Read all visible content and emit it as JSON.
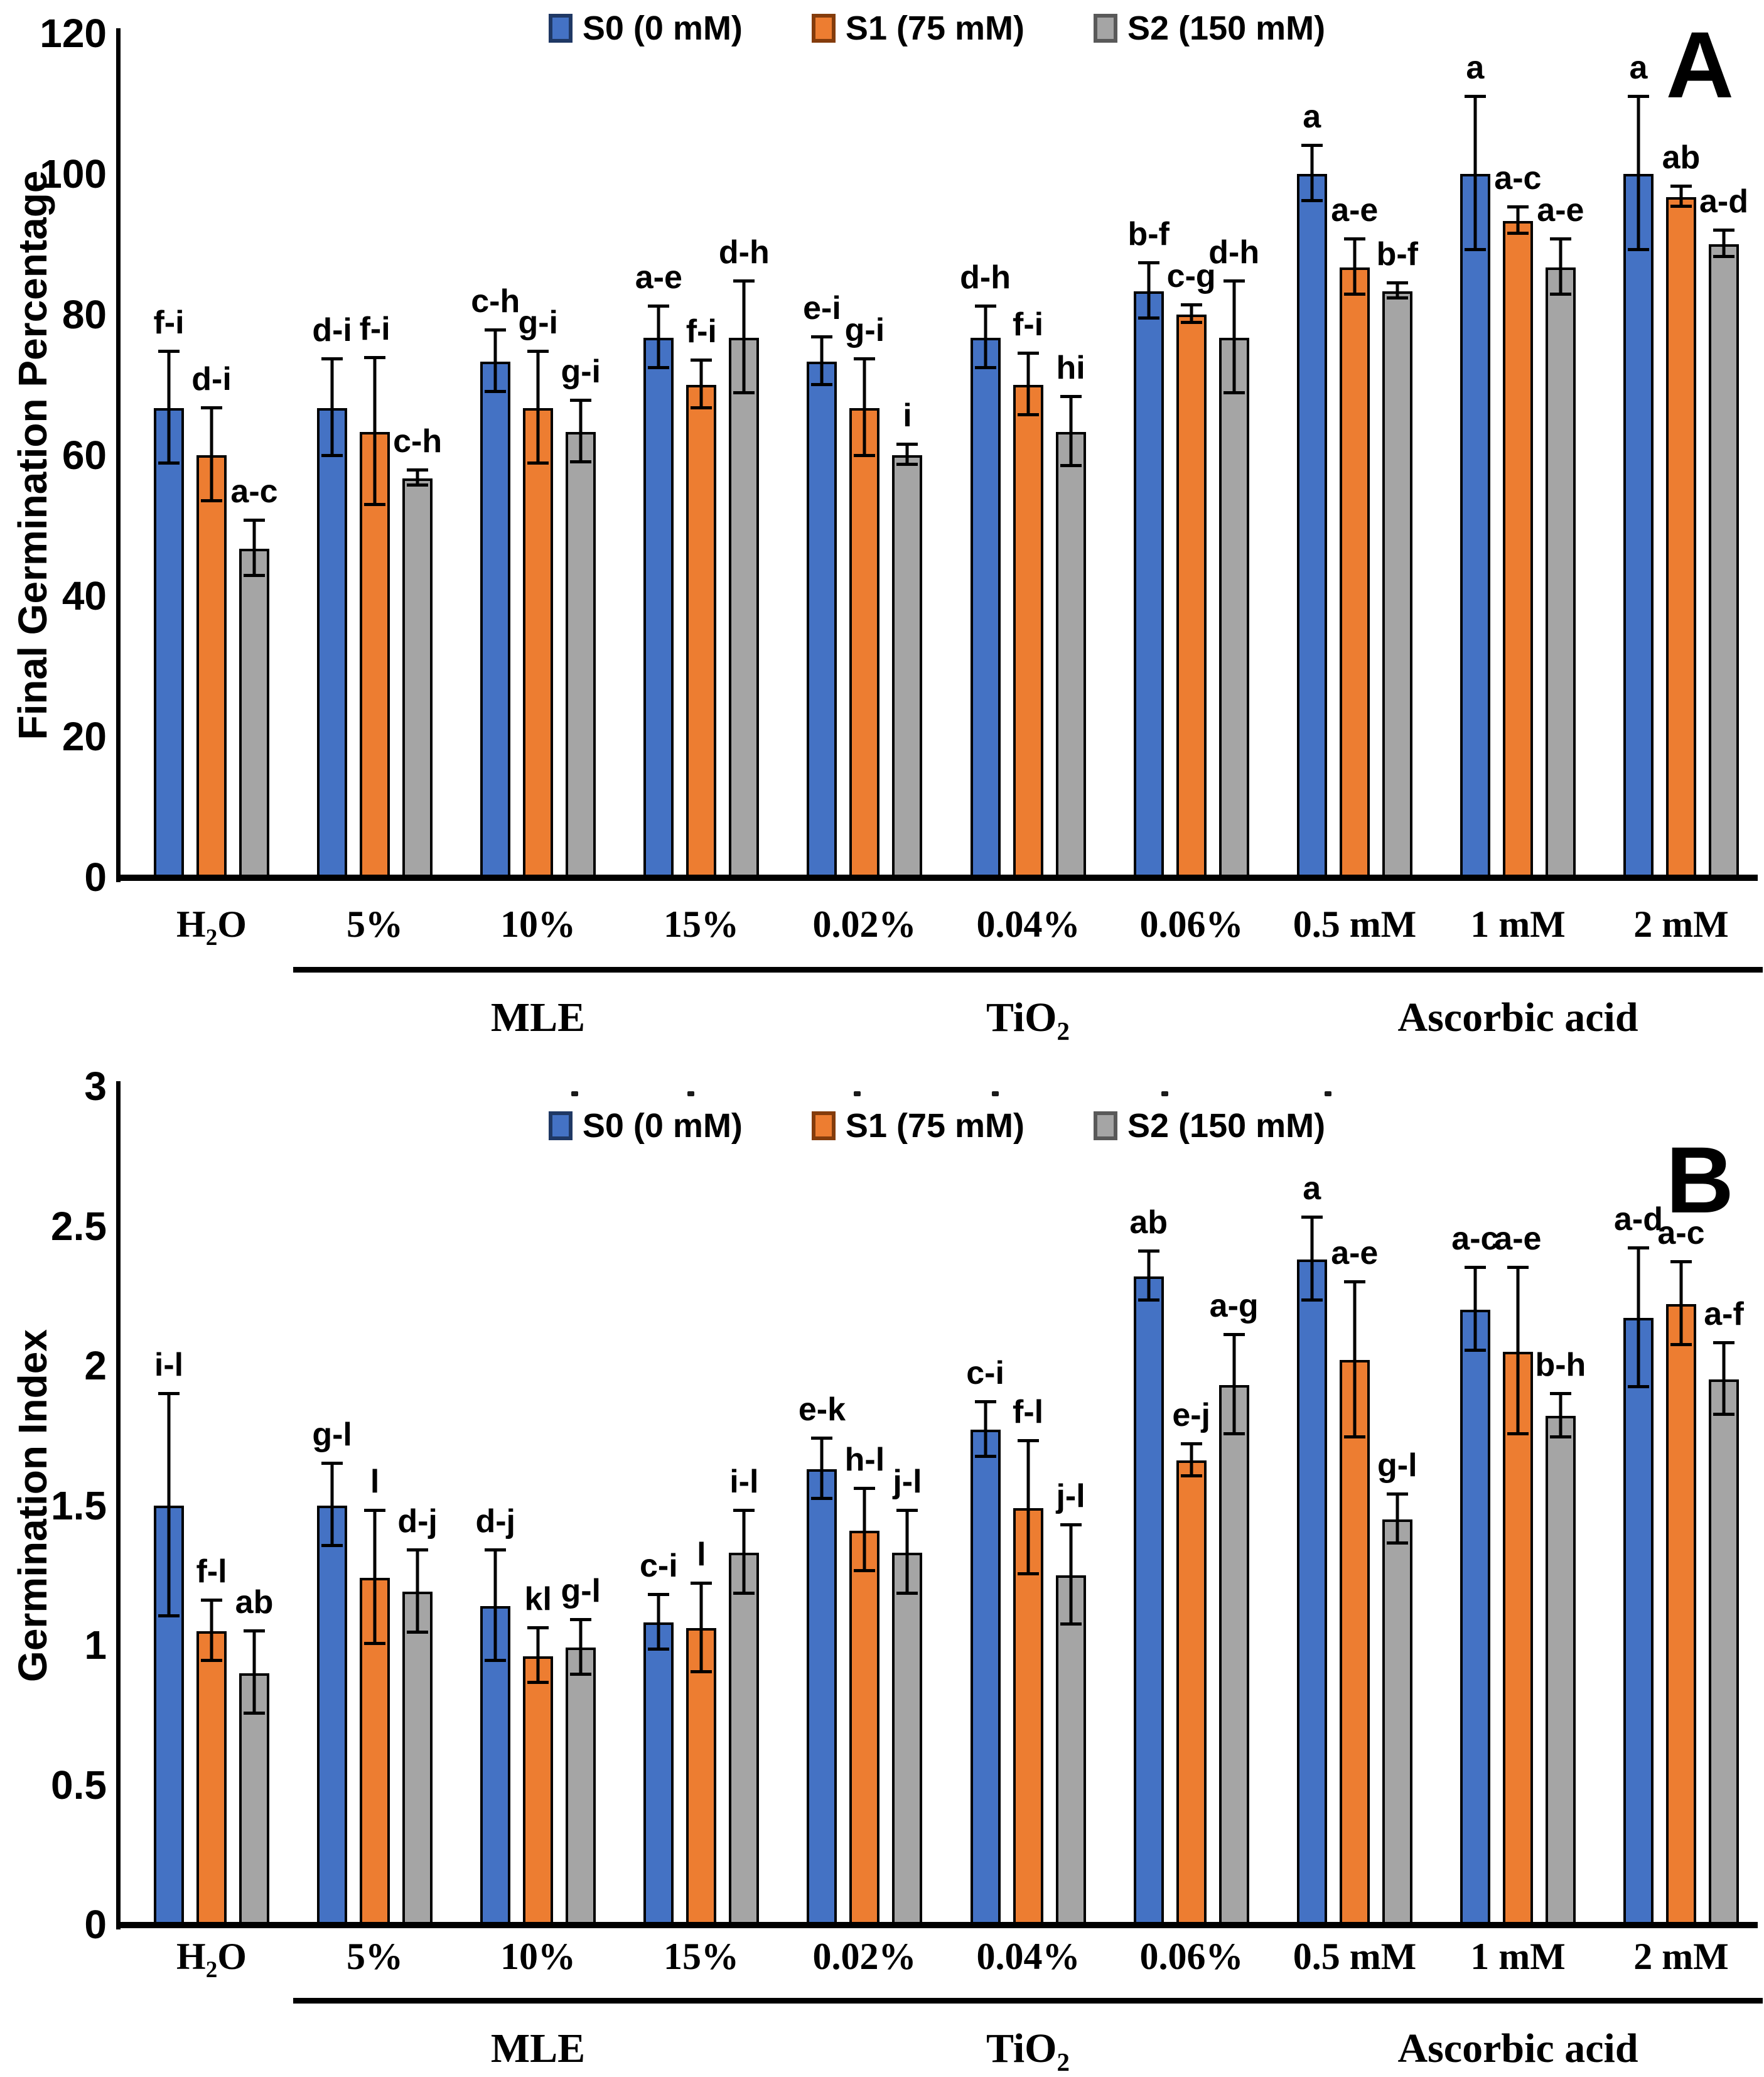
{
  "chart_data": [
    {
      "type": "bar",
      "panel_letter": "A",
      "ylabel": "Final Germination Percentage",
      "ylim": [
        0,
        120
      ],
      "yticks": [
        "0",
        "20",
        "40",
        "60",
        "80",
        "100",
        "120"
      ],
      "grid": false,
      "legend_position": "top-center",
      "categories": [
        "H₂O",
        "5%",
        "10%",
        "15%",
        "0.02%",
        "0.04%",
        "0.06%",
        "0.5 mM",
        "1 mM",
        "2 mM"
      ],
      "group_spans": [
        {
          "label": "MLE",
          "from": 1,
          "to": 3
        },
        {
          "label": "TiO₂",
          "from": 4,
          "to": 6
        },
        {
          "label": "Ascorbic acid",
          "from": 7,
          "to": 9
        }
      ],
      "series": [
        {
          "name": "S0 (0 mM)",
          "color": "#4472C4",
          "edge": "#1F3864",
          "values": [
            66.7,
            66.7,
            73.3,
            76.7,
            73.3,
            76.7,
            83.3,
            100,
            100,
            100
          ],
          "errors": [
            8,
            7,
            4.5,
            4.5,
            3.5,
            4.5,
            4,
            4,
            11,
            11
          ],
          "letters": [
            "f-i",
            "d-i",
            "c-h",
            "a-e",
            "e-i",
            "d-h",
            "b-f",
            "a",
            "a",
            "a"
          ]
        },
        {
          "name": "S1 (75 mM)",
          "color": "#ED7D31",
          "edge": "#843C0C",
          "values": [
            60,
            63.3,
            66.7,
            70,
            66.7,
            70,
            80,
            86.7,
            93.3,
            96.7
          ],
          "errors": [
            6.7,
            10.5,
            8,
            3.5,
            7,
            4.5,
            1.3,
            4,
            2,
            1.5
          ],
          "letters": [
            "d-i",
            "f-i",
            "g-i",
            "f-i",
            "g-i",
            "f-i",
            "c-g",
            "a-e",
            "a-c",
            "ab"
          ]
        },
        {
          "name": "S2 (150 mM)",
          "color": "#A5A5A5",
          "edge": "#595959",
          "values": [
            46.7,
            56.7,
            63.3,
            76.7,
            60,
            63.3,
            76.7,
            83.3,
            86.7,
            90
          ],
          "errors": [
            4,
            1.2,
            4.5,
            8,
            1.5,
            5,
            8,
            1.2,
            4,
            2
          ],
          "letters": [
            "a-c",
            "c-h",
            "g-i",
            "d-h",
            "i",
            "hi",
            "d-h",
            "b-f",
            "a-e",
            "a-d"
          ]
        }
      ]
    },
    {
      "type": "bar",
      "panel_letter": "B",
      "ylabel": "Germination Index",
      "ylim": [
        0,
        3
      ],
      "yticks": [
        "0",
        "0.5",
        "1",
        "1.5",
        "2",
        "2.5",
        "3"
      ],
      "grid": false,
      "legend_position": "top-center",
      "categories": [
        "H₂O",
        "5%",
        "10%",
        "15%",
        "0.02%",
        "0.04%",
        "0.06%",
        "0.5 mM",
        "1 mM",
        "2 mM"
      ],
      "group_spans": [
        {
          "label": "MLE",
          "from": 1,
          "to": 3
        },
        {
          "label": "TiO₂",
          "from": 4,
          "to": 6
        },
        {
          "label": "Ascorbic acid",
          "from": 7,
          "to": 9
        }
      ],
      "series": [
        {
          "name": "S0 (0 mM)",
          "color": "#4472C4",
          "edge": "#1F3864",
          "values": [
            1.5,
            1.5,
            1.14,
            1.08,
            1.63,
            1.77,
            2.32,
            2.38,
            2.2,
            2.17
          ],
          "errors": [
            0.4,
            0.15,
            0.2,
            0.1,
            0.11,
            0.1,
            0.09,
            0.15,
            0.15,
            0.25
          ],
          "letters": [
            "i-l",
            "g-l",
            "d-j",
            "c-i",
            "e-k",
            "c-i",
            "ab",
            "a",
            "a-c",
            "a-d"
          ]
        },
        {
          "name": "S1 (75 mM)",
          "color": "#ED7D31",
          "edge": "#843C0C",
          "values": [
            1.05,
            1.24,
            0.96,
            1.06,
            1.41,
            1.49,
            1.66,
            2.02,
            2.05,
            2.22
          ],
          "errors": [
            0.11,
            0.24,
            0.1,
            0.16,
            0.15,
            0.24,
            0.06,
            0.28,
            0.3,
            0.15
          ],
          "letters": [
            "f-l",
            "l",
            "kl",
            "l",
            "h-l",
            "f-l",
            "e-j",
            "a-e",
            "a-e",
            "a-c"
          ]
        },
        {
          "name": "S2 (150 mM)",
          "color": "#A5A5A5",
          "edge": "#595959",
          "values": [
            0.9,
            1.19,
            0.99,
            1.33,
            1.33,
            1.25,
            1.93,
            1.45,
            1.82,
            1.95
          ],
          "errors": [
            0.15,
            0.15,
            0.1,
            0.15,
            0.15,
            0.18,
            0.18,
            0.09,
            0.08,
            0.13
          ],
          "letters": [
            "ab",
            "d-j",
            "g-l",
            "i-l",
            "j-l",
            "j-l",
            "a-g",
            "g-l",
            "b-h",
            "a-f"
          ]
        }
      ]
    }
  ]
}
